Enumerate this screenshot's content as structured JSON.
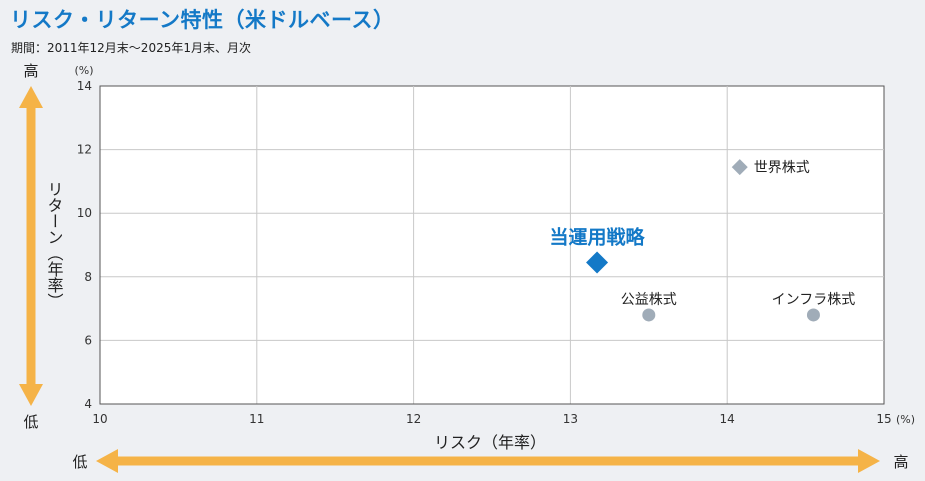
{
  "header": {
    "title": "リスク・リターン特性（米ドルベース）",
    "period": "期間：2011年12月末〜2025年1月末、月次"
  },
  "axes": {
    "y_title": "リターン（年率）",
    "x_title": "リスク（年率）",
    "y_unit": "(%)",
    "x_unit": "(%)",
    "y_high": "高",
    "y_low": "低",
    "x_low": "低",
    "x_high": "高"
  },
  "colors": {
    "title": "#1479c7",
    "highlight": "#1479c7",
    "marker_gray": "#a0acb8",
    "arrow": "#f5b347",
    "plot_bg": "#ffffff",
    "grid": "#c8c8c8"
  },
  "chart_data": {
    "type": "scatter",
    "title": "リスク・リターン特性（米ドルベース）",
    "xlabel": "リスク（年率）",
    "ylabel": "リターン（年率）",
    "xlim": [
      10,
      15
    ],
    "ylim": [
      4,
      14
    ],
    "xticks": [
      10,
      11,
      12,
      13,
      14,
      15
    ],
    "yticks": [
      4,
      6,
      8,
      10,
      12,
      14
    ],
    "grid": true,
    "points": [
      {
        "label": "当運用戦略",
        "x": 13.17,
        "y": 8.45,
        "marker": "diamond",
        "color": "#1479c7",
        "highlight": true
      },
      {
        "label": "世界株式",
        "x": 14.08,
        "y": 11.45,
        "marker": "diamond",
        "color": "#a0acb8",
        "highlight": false
      },
      {
        "label": "公益株式",
        "x": 13.5,
        "y": 6.8,
        "marker": "circle",
        "color": "#a0acb8",
        "highlight": false
      },
      {
        "label": "インフラ株式",
        "x": 14.55,
        "y": 6.8,
        "marker": "circle",
        "color": "#a0acb8",
        "highlight": false
      }
    ]
  }
}
